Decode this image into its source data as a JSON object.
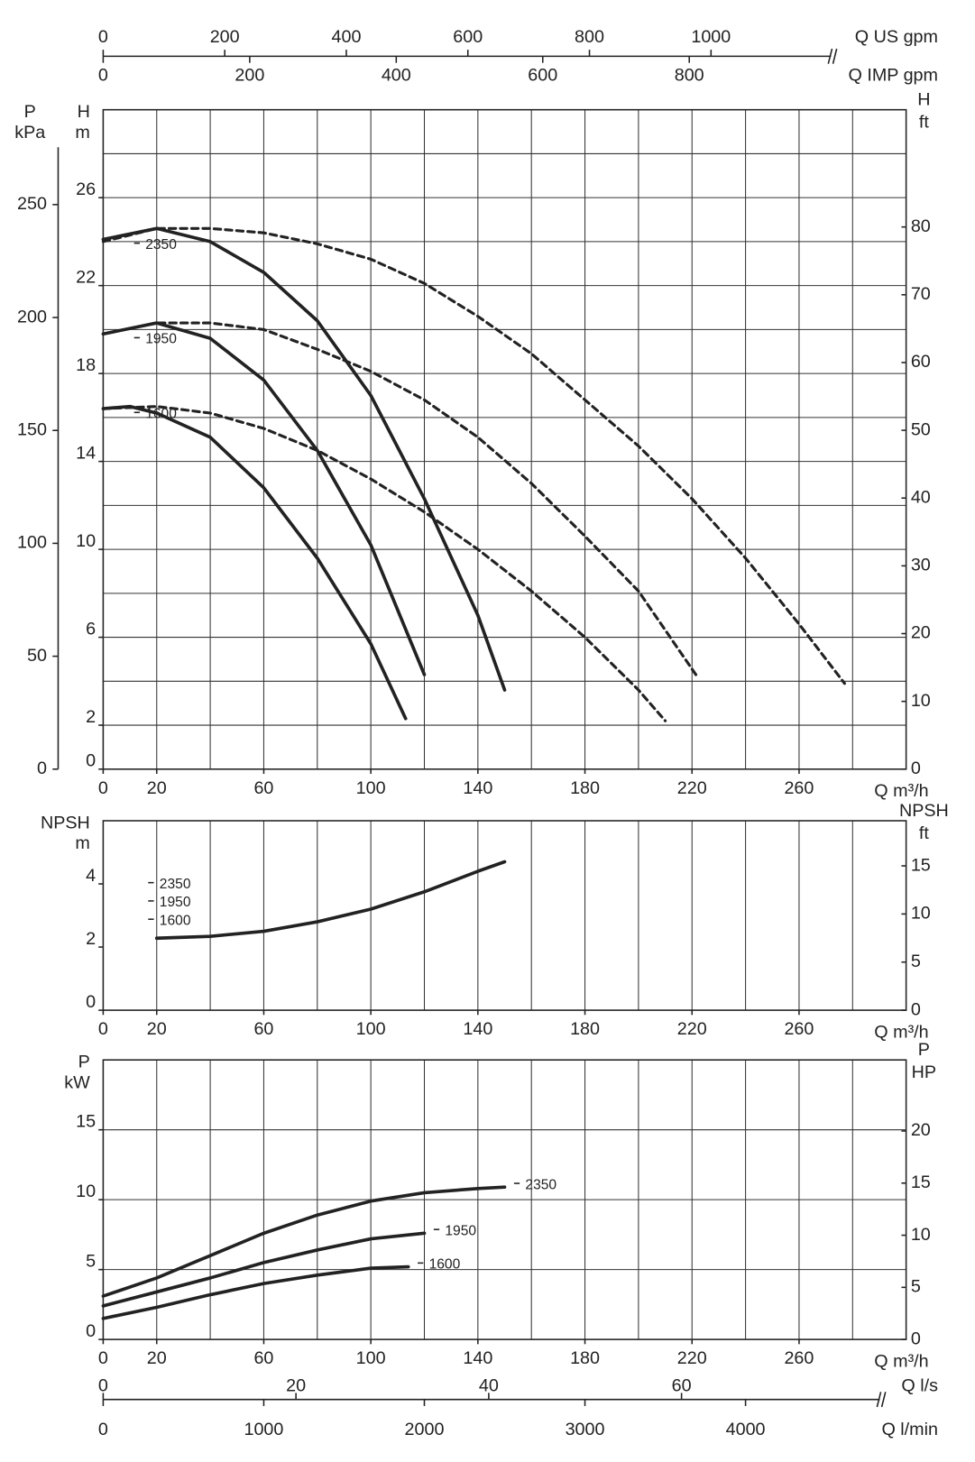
{
  "chart_data": [
    {
      "type": "line",
      "xlabel": "Q m³/h",
      "ylabel": [
        "H",
        "m"
      ],
      "y2label": [
        "H",
        "ft"
      ],
      "y3label": [
        "P",
        "kPa"
      ],
      "xlim": [
        0,
        300
      ],
      "xticks": [
        0,
        20,
        60,
        100,
        140,
        180,
        220,
        260
      ],
      "xgrid": [
        20,
        40,
        60,
        80,
        100,
        120,
        140,
        160,
        180,
        200,
        220,
        240,
        260,
        280
      ],
      "ylim": [
        0,
        30
      ],
      "yticks": [
        0,
        2,
        6,
        10,
        14,
        18,
        22,
        26
      ],
      "ygrid": [
        2,
        4,
        6,
        8,
        10,
        12,
        14,
        16,
        18,
        20,
        22,
        24,
        26,
        28
      ],
      "y2lim": [
        0,
        97.3
      ],
      "y2ticks": [
        0,
        10,
        20,
        30,
        40,
        50,
        60,
        70,
        80
      ],
      "y3lim": [
        0,
        292
      ],
      "y3ticks": [
        0,
        50,
        100,
        150,
        200,
        250
      ],
      "top_axes": [
        {
          "label": "Q US gpm",
          "lim": [
            0,
            1321
          ],
          "ticks": [
            0,
            200,
            400,
            600,
            800,
            1000
          ],
          "side": "up"
        },
        {
          "label": "Q IMP gpm",
          "lim": [
            0,
            1096
          ],
          "ticks": [
            0,
            200,
            400,
            600,
            800
          ],
          "side": "down"
        }
      ],
      "series": [
        {
          "name": "2350",
          "color": "#222",
          "x": [
            0,
            20,
            40,
            60,
            80,
            100,
            120,
            140,
            150
          ],
          "values": [
            24.1,
            24.6,
            24.0,
            22.6,
            20.4,
            17.0,
            12.3,
            7.0,
            3.6
          ]
        },
        {
          "name": "1950",
          "color": "#222",
          "x": [
            0,
            20,
            40,
            60,
            80,
            100,
            120
          ],
          "values": [
            19.8,
            20.3,
            19.6,
            17.7,
            14.5,
            10.2,
            4.3
          ]
        },
        {
          "name": "1600",
          "color": "#222",
          "x": [
            0,
            10,
            20,
            40,
            60,
            80,
            100,
            113
          ],
          "values": [
            16.4,
            16.5,
            16.2,
            15.1,
            12.8,
            9.6,
            5.7,
            2.3
          ]
        },
        {
          "dashed": true,
          "color": "#222",
          "x": [
            0,
            20,
            40,
            60,
            80,
            100,
            120,
            140,
            160,
            180,
            200,
            220,
            240,
            260,
            277
          ],
          "values": [
            24.0,
            24.6,
            24.6,
            24.4,
            23.9,
            23.2,
            22.1,
            20.6,
            18.9,
            16.8,
            14.7,
            12.3,
            9.6,
            6.6,
            3.9
          ]
        },
        {
          "dashed": true,
          "color": "#222",
          "x": [
            0,
            20,
            40,
            60,
            80,
            100,
            120,
            140,
            160,
            180,
            200,
            222
          ],
          "values": [
            19.8,
            20.3,
            20.3,
            20.0,
            19.1,
            18.1,
            16.8,
            15.1,
            13.0,
            10.6,
            8.1,
            4.2
          ]
        },
        {
          "dashed": true,
          "color": "#222",
          "x": [
            0,
            20,
            40,
            60,
            80,
            100,
            120,
            140,
            160,
            180,
            200,
            210
          ],
          "values": [
            16.4,
            16.5,
            16.2,
            15.5,
            14.5,
            13.2,
            11.7,
            10.0,
            8.1,
            6.0,
            3.6,
            2.2
          ]
        }
      ]
    },
    {
      "type": "line",
      "xlabel": "Q m³/h",
      "ylabel": [
        "NPSH",
        "m"
      ],
      "y2label": [
        "NPSH",
        "ft"
      ],
      "xlim": [
        0,
        300
      ],
      "xticks": [
        0,
        20,
        60,
        100,
        140,
        180,
        220,
        260
      ],
      "xgrid": [
        20,
        40,
        60,
        80,
        100,
        120,
        140,
        160,
        180,
        200,
        220,
        240,
        260,
        280
      ],
      "ylim": [
        0,
        6
      ],
      "yticks": [
        0,
        2,
        4
      ],
      "y2lim": [
        0,
        19.69
      ],
      "y2ticks": [
        0,
        5,
        10,
        15
      ],
      "labels": [
        "2350",
        "1950",
        "1600"
      ],
      "series": [
        {
          "color": "#222",
          "x": [
            20,
            40,
            60,
            80,
            100,
            120,
            140,
            150
          ],
          "values": [
            2.28,
            2.34,
            2.5,
            2.8,
            3.2,
            3.75,
            4.4,
            4.7
          ]
        }
      ]
    },
    {
      "type": "line",
      "xlabel": "Q m³/h",
      "ylabel": [
        "P",
        "kW"
      ],
      "y2label": [
        "P",
        "HP"
      ],
      "xlim": [
        0,
        300
      ],
      "xticks": [
        0,
        20,
        60,
        100,
        140,
        180,
        220,
        260
      ],
      "xgrid": [
        20,
        40,
        60,
        80,
        100,
        120,
        140,
        160,
        180,
        200,
        220,
        240,
        260,
        280
      ],
      "ylim": [
        0,
        20
      ],
      "yticks": [
        0,
        5,
        10,
        15
      ],
      "ygrid": [
        5,
        10,
        15
      ],
      "y2lim": [
        0,
        26.82
      ],
      "y2ticks": [
        0,
        5,
        10,
        15,
        20
      ],
      "bottom_axes": [
        {
          "label": "Q l/s",
          "lim": [
            0,
            83.3
          ],
          "ticks": [
            0,
            20,
            40,
            60
          ],
          "side": "up"
        },
        {
          "label": "Q l/min",
          "lim": [
            0,
            5000
          ],
          "ticks": [
            0,
            1000,
            2000,
            3000,
            4000
          ],
          "side": "down"
        }
      ],
      "series": [
        {
          "name": "2350",
          "color": "#222",
          "x": [
            0,
            20,
            40,
            60,
            80,
            100,
            120,
            140,
            150
          ],
          "values": [
            3.1,
            4.4,
            6.0,
            7.6,
            8.9,
            9.9,
            10.5,
            10.8,
            10.9
          ]
        },
        {
          "name": "1950",
          "color": "#222",
          "x": [
            0,
            20,
            40,
            60,
            80,
            100,
            120
          ],
          "values": [
            2.4,
            3.4,
            4.4,
            5.5,
            6.4,
            7.2,
            7.6
          ]
        },
        {
          "name": "1600",
          "color": "#222",
          "x": [
            0,
            20,
            40,
            60,
            80,
            100,
            114
          ],
          "values": [
            1.5,
            2.3,
            3.2,
            4.0,
            4.6,
            5.1,
            5.2
          ]
        }
      ]
    }
  ]
}
